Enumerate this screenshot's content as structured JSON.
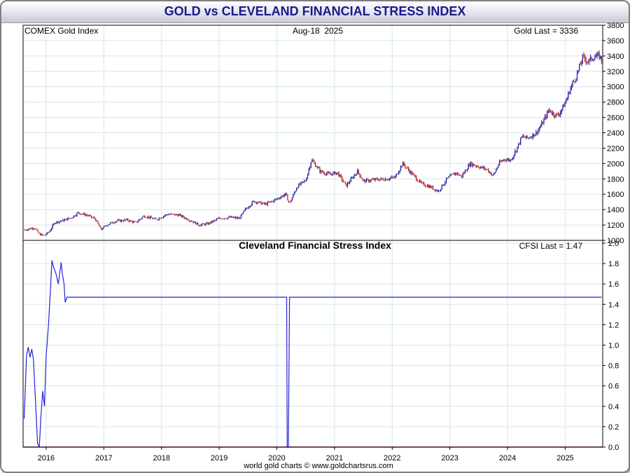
{
  "title": "GOLD vs CLEVELAND FINANCIAL STRESS INDEX",
  "footer": "world gold charts © www.goldchartsrus.com",
  "colors": {
    "title_text": "#1a1a8c",
    "candle_up": "#1a1a9a",
    "candle_down": "#c01818",
    "cfsi_line": "#2222dd",
    "zero_line": "#c0208a",
    "grid": "#d6e6ec"
  },
  "chart_data": [
    {
      "type": "candlestick",
      "title": "COMEX Gold Index",
      "date_label": "Aug-18  2025",
      "last_label": "Gold Last = 3336",
      "ylim": [
        1000,
        3800
      ],
      "yticks": [
        1000,
        1200,
        1400,
        1600,
        1800,
        2000,
        2200,
        2400,
        2600,
        2800,
        3000,
        3200,
        3400,
        3600,
        3800
      ],
      "x_range": [
        2015.6,
        2025.65
      ],
      "grid": true,
      "series": [
        {
          "x": 2015.6,
          "y": 1130
        },
        {
          "x": 2015.7,
          "y": 1150
        },
        {
          "x": 2015.8,
          "y": 1165
        },
        {
          "x": 2015.87,
          "y": 1085
        },
        {
          "x": 2015.96,
          "y": 1060
        },
        {
          "x": 2016.05,
          "y": 1110
        },
        {
          "x": 2016.15,
          "y": 1235
        },
        {
          "x": 2016.3,
          "y": 1260
        },
        {
          "x": 2016.45,
          "y": 1300
        },
        {
          "x": 2016.55,
          "y": 1360
        },
        {
          "x": 2016.7,
          "y": 1330
        },
        {
          "x": 2016.85,
          "y": 1280
        },
        {
          "x": 2016.95,
          "y": 1140
        },
        {
          "x": 2017.05,
          "y": 1200
        },
        {
          "x": 2017.2,
          "y": 1250
        },
        {
          "x": 2017.4,
          "y": 1265
        },
        {
          "x": 2017.55,
          "y": 1230
        },
        {
          "x": 2017.7,
          "y": 1320
        },
        {
          "x": 2017.9,
          "y": 1270
        },
        {
          "x": 2018.1,
          "y": 1340
        },
        {
          "x": 2018.3,
          "y": 1330
        },
        {
          "x": 2018.5,
          "y": 1260
        },
        {
          "x": 2018.65,
          "y": 1200
        },
        {
          "x": 2018.8,
          "y": 1215
        },
        {
          "x": 2019.0,
          "y": 1285
        },
        {
          "x": 2019.2,
          "y": 1300
        },
        {
          "x": 2019.35,
          "y": 1285
        },
        {
          "x": 2019.45,
          "y": 1400
        },
        {
          "x": 2019.6,
          "y": 1510
        },
        {
          "x": 2019.8,
          "y": 1470
        },
        {
          "x": 2019.95,
          "y": 1520
        },
        {
          "x": 2020.15,
          "y": 1600
        },
        {
          "x": 2020.22,
          "y": 1480
        },
        {
          "x": 2020.35,
          "y": 1700
        },
        {
          "x": 2020.5,
          "y": 1780
        },
        {
          "x": 2020.6,
          "y": 2050
        },
        {
          "x": 2020.75,
          "y": 1900
        },
        {
          "x": 2020.9,
          "y": 1860
        },
        {
          "x": 2021.05,
          "y": 1880
        },
        {
          "x": 2021.2,
          "y": 1710
        },
        {
          "x": 2021.4,
          "y": 1900
        },
        {
          "x": 2021.5,
          "y": 1770
        },
        {
          "x": 2021.7,
          "y": 1790
        },
        {
          "x": 2021.9,
          "y": 1800
        },
        {
          "x": 2022.05,
          "y": 1820
        },
        {
          "x": 2022.18,
          "y": 2000
        },
        {
          "x": 2022.35,
          "y": 1860
        },
        {
          "x": 2022.5,
          "y": 1740
        },
        {
          "x": 2022.65,
          "y": 1700
        },
        {
          "x": 2022.8,
          "y": 1640
        },
        {
          "x": 2022.95,
          "y": 1800
        },
        {
          "x": 2023.1,
          "y": 1880
        },
        {
          "x": 2023.2,
          "y": 1830
        },
        {
          "x": 2023.35,
          "y": 2000
        },
        {
          "x": 2023.5,
          "y": 1960
        },
        {
          "x": 2023.65,
          "y": 1920
        },
        {
          "x": 2023.75,
          "y": 1840
        },
        {
          "x": 2023.85,
          "y": 2000
        },
        {
          "x": 2023.95,
          "y": 2060
        },
        {
          "x": 2024.05,
          "y": 2040
        },
        {
          "x": 2024.15,
          "y": 2180
        },
        {
          "x": 2024.25,
          "y": 2350
        },
        {
          "x": 2024.35,
          "y": 2330
        },
        {
          "x": 2024.5,
          "y": 2400
        },
        {
          "x": 2024.6,
          "y": 2520
        },
        {
          "x": 2024.72,
          "y": 2700
        },
        {
          "x": 2024.8,
          "y": 2640
        },
        {
          "x": 2024.88,
          "y": 2630
        },
        {
          "x": 2025.0,
          "y": 2790
        },
        {
          "x": 2025.1,
          "y": 3000
        },
        {
          "x": 2025.2,
          "y": 3150
        },
        {
          "x": 2025.3,
          "y": 3380
        },
        {
          "x": 2025.4,
          "y": 3330
        },
        {
          "x": 2025.5,
          "y": 3390
        },
        {
          "x": 2025.6,
          "y": 3400
        },
        {
          "x": 2025.63,
          "y": 3336
        }
      ]
    },
    {
      "type": "line",
      "title": "Cleveland Financial Stress Index",
      "last_label": "CFSI Last = 1.47",
      "ylim": [
        0,
        2.0
      ],
      "yticks": [
        "0.0",
        "0.2",
        "0.4",
        "0.6",
        "0.8",
        "1.0",
        "1.2",
        "1.4",
        "1.6",
        "1.8",
        "2.0"
      ],
      "x_range": [
        2015.6,
        2025.65
      ],
      "xticks": [
        "2016",
        "2017",
        "2018",
        "2019",
        "2020",
        "2021",
        "2022",
        "2023",
        "2024",
        "2025"
      ],
      "grid": true,
      "series": [
        {
          "x": 2015.62,
          "y": 0.28
        },
        {
          "x": 2015.66,
          "y": 0.9
        },
        {
          "x": 2015.69,
          "y": 0.98
        },
        {
          "x": 2015.72,
          "y": 0.88
        },
        {
          "x": 2015.75,
          "y": 0.96
        },
        {
          "x": 2015.78,
          "y": 0.86
        },
        {
          "x": 2015.82,
          "y": 0.4
        },
        {
          "x": 2015.85,
          "y": 0.04
        },
        {
          "x": 2015.88,
          "y": 0.0
        },
        {
          "x": 2015.91,
          "y": 0.3
        },
        {
          "x": 2015.94,
          "y": 0.55
        },
        {
          "x": 2015.97,
          "y": 0.4
        },
        {
          "x": 2016.0,
          "y": 0.9
        },
        {
          "x": 2016.04,
          "y": 1.2
        },
        {
          "x": 2016.07,
          "y": 1.5
        },
        {
          "x": 2016.1,
          "y": 1.83
        },
        {
          "x": 2016.13,
          "y": 1.76
        },
        {
          "x": 2016.17,
          "y": 1.7
        },
        {
          "x": 2016.21,
          "y": 1.6
        },
        {
          "x": 2016.26,
          "y": 1.81
        },
        {
          "x": 2016.28,
          "y": 1.7
        },
        {
          "x": 2016.31,
          "y": 1.6
        },
        {
          "x": 2016.33,
          "y": 1.42
        },
        {
          "x": 2016.36,
          "y": 1.47
        },
        {
          "x": 2020.17,
          "y": 1.47
        },
        {
          "x": 2020.18,
          "y": 0.0
        },
        {
          "x": 2020.2,
          "y": 0.0
        },
        {
          "x": 2020.22,
          "y": 1.47
        },
        {
          "x": 2025.63,
          "y": 1.47
        }
      ]
    }
  ]
}
